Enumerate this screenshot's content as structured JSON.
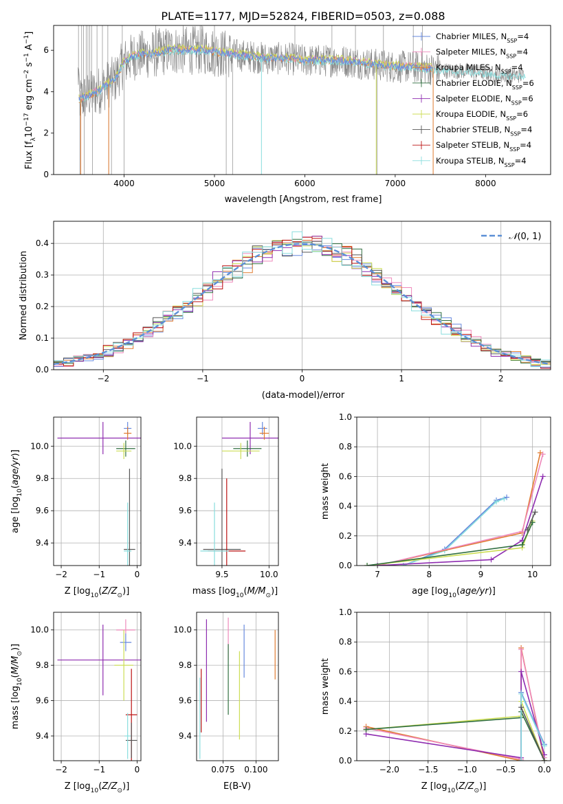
{
  "figure_title": "PLATE=1177, MJD=52824, FIBERID=0503, z=0.088",
  "colors": {
    "miles_chabrier": "#6688dd",
    "miles_salpeter": "#ee88bb",
    "miles_kroupa": "#e07a2e",
    "elodie_chabrier": "#2f6e3f",
    "elodie_salpeter": "#8e2cb0",
    "elodie_kroupa": "#ccdd55",
    "stelib_chabrier": "#555555",
    "stelib_salpeter": "#bb1111",
    "stelib_kroupa": "#88dddd",
    "spectrum": "#888888",
    "normal_curve": "#5b8fd6"
  },
  "chart_data": [
    {
      "type": "line",
      "xlabel": "wavelength [Angstrom, rest frame]",
      "ylabel": "Flux [f_λ10^-17 erg cm^-2 s^-1 A^-1]",
      "xlim": [
        3220,
        8720
      ],
      "ylim": [
        0,
        7.2
      ],
      "xticks": [
        4000,
        5000,
        6000,
        7000,
        8000
      ],
      "yticks": [
        0,
        2,
        4,
        6
      ],
      "grid": false,
      "legend_position": "top-right",
      "legend": [
        {
          "label": "Chabrier MILES, N_SSP=4",
          "color_key": "miles_chabrier"
        },
        {
          "label": "Salpeter MILES, N_SSP=4",
          "color_key": "miles_salpeter"
        },
        {
          "label": "Kroupa MILES, N_SSP=4",
          "color_key": "miles_kroupa"
        },
        {
          "label": "Chabrier ELODIE, N_SSP=6",
          "color_key": "elodie_chabrier"
        },
        {
          "label": "Salpeter ELODIE, N_SSP=6",
          "color_key": "elodie_salpeter"
        },
        {
          "label": "Kroupa ELODIE, N_SSP=6",
          "color_key": "elodie_kroupa"
        },
        {
          "label": "Chabrier STELIB, N_SSP=4",
          "color_key": "stelib_chabrier"
        },
        {
          "label": "Salpeter STELIB, N_SSP=4",
          "color_key": "stelib_salpeter"
        },
        {
          "label": "Kroupa STELIB, N_SSP=4",
          "color_key": "stelib_kroupa"
        }
      ],
      "continuum": [
        [
          3500,
          3.6
        ],
        [
          3600,
          3.8
        ],
        [
          3700,
          4.0
        ],
        [
          3800,
          4.3
        ],
        [
          3900,
          4.6
        ],
        [
          4000,
          5.4
        ],
        [
          4100,
          5.7
        ],
        [
          4200,
          5.8
        ],
        [
          4300,
          5.8
        ],
        [
          4400,
          5.9
        ],
        [
          4500,
          6.0
        ],
        [
          4600,
          6.0
        ],
        [
          4700,
          6.0
        ],
        [
          4800,
          6.0
        ],
        [
          4900,
          6.0
        ],
        [
          5000,
          5.9
        ],
        [
          5200,
          5.8
        ],
        [
          5400,
          5.7
        ],
        [
          5600,
          5.6
        ],
        [
          5800,
          5.6
        ],
        [
          6000,
          5.5
        ],
        [
          6200,
          5.5
        ],
        [
          6400,
          5.5
        ],
        [
          6600,
          5.4
        ],
        [
          6800,
          5.3
        ],
        [
          7000,
          5.2
        ],
        [
          7200,
          5.2
        ],
        [
          7400,
          5.1
        ],
        [
          7600,
          5.0
        ],
        [
          7800,
          5.0
        ],
        [
          8000,
          4.9
        ],
        [
          8200,
          4.8
        ],
        [
          8400,
          4.8
        ]
      ]
    },
    {
      "type": "line",
      "xlabel": "(data-model)/error",
      "ylabel": "Normed distribution",
      "xlim": [
        -2.5,
        2.5
      ],
      "ylim": [
        0,
        0.47
      ],
      "xticks": [
        -2,
        -1,
        0,
        1,
        2
      ],
      "yticks": [
        0.0,
        0.1,
        0.2,
        0.3,
        0.4
      ],
      "grid": true,
      "legend_position": "top-right",
      "legend": [
        {
          "label": "𝒩(0,1)",
          "color_key": "normal_curve"
        }
      ],
      "bin_width": 0.1
    },
    {
      "type": "scatter",
      "xlabel": "Z [log10(Z/Z⊙)]",
      "ylabel": "age [log10(age/yr)]",
      "xlim": [
        -2.2,
        0.1
      ],
      "ylim": [
        9.26,
        10.18
      ],
      "xticks": [
        -2,
        -1,
        0
      ],
      "yticks": [
        9.4,
        9.6,
        9.8,
        10.0
      ],
      "grid": true,
      "series": [
        {
          "color_key": "elodie_salpeter",
          "x": -0.9,
          "xerr": 1.2,
          "y": 10.05,
          "yerr": 0.1
        },
        {
          "color_key": "miles_chabrier",
          "x": -0.25,
          "xerr": 0.1,
          "y": 10.11,
          "yerr": 0.04
        },
        {
          "color_key": "miles_kroupa",
          "x": -0.25,
          "xerr": 0.1,
          "y": 10.08,
          "yerr": 0.04
        },
        {
          "color_key": "elodie_chabrier",
          "x": -0.3,
          "xerr": 0.25,
          "y": 9.985,
          "yerr": 0.05
        },
        {
          "color_key": "elodie_kroupa",
          "x": -0.35,
          "xerr": 0.2,
          "y": 9.97,
          "yerr": 0.05
        },
        {
          "color_key": "stelib_chabrier",
          "x": -0.2,
          "xerr": 0.15,
          "y": 9.36,
          "yerr": 0.5
        },
        {
          "color_key": "stelib_kroupa",
          "x": -0.25,
          "xerr": 0.1,
          "y": 9.35,
          "yerr": 0.3
        }
      ]
    },
    {
      "type": "scatter",
      "xlabel": "mass [log10(M/M⊙)]",
      "ylabel": "",
      "xlim": [
        9.23,
        10.1
      ],
      "ylim": [
        9.26,
        10.18
      ],
      "xticks": [
        9.5,
        10.0
      ],
      "yticks": [
        9.4,
        9.6,
        9.8,
        10.0
      ],
      "grid": true,
      "series": [
        {
          "color_key": "elodie_salpeter",
          "x": 9.8,
          "xerr": 0.3,
          "y": 10.05,
          "yerr": 0.1
        },
        {
          "color_key": "miles_chabrier",
          "x": 9.93,
          "xerr": 0.05,
          "y": 10.11,
          "yerr": 0.04
        },
        {
          "color_key": "miles_kroupa",
          "x": 9.95,
          "xerr": 0.05,
          "y": 10.08,
          "yerr": 0.04
        },
        {
          "color_key": "elodie_chabrier",
          "x": 9.77,
          "xerr": 0.15,
          "y": 9.985,
          "yerr": 0.05
        },
        {
          "color_key": "elodie_kroupa",
          "x": 9.7,
          "xerr": 0.2,
          "y": 9.97,
          "yerr": 0.05
        },
        {
          "color_key": "stelib_chabrier",
          "x": 9.5,
          "xerr": 0.2,
          "y": 9.36,
          "yerr": 0.5
        },
        {
          "color_key": "stelib_salpeter",
          "x": 9.55,
          "xerr": 0.2,
          "y": 9.35,
          "yerr": 0.45
        },
        {
          "color_key": "stelib_kroupa",
          "x": 9.42,
          "xerr": 0.15,
          "y": 9.35,
          "yerr": 0.3
        }
      ]
    },
    {
      "type": "line",
      "xlabel": "age [log10(age/yr)]",
      "ylabel": "mass weight",
      "xlim": [
        6.6,
        10.35
      ],
      "ylim": [
        0,
        1.0
      ],
      "xticks": [
        7,
        8,
        9,
        10
      ],
      "yticks": [
        0.0,
        0.2,
        0.4,
        0.6,
        0.8,
        1.0
      ],
      "grid": true,
      "series": [
        {
          "color_key": "miles_chabrier",
          "x": [
            7.5,
            8.3,
            9.3,
            9.5
          ],
          "y": [
            0.0,
            0.11,
            0.44,
            0.46
          ]
        },
        {
          "color_key": "stelib_kroupa",
          "x": [
            7.5,
            8.3,
            9.3,
            9.45
          ],
          "y": [
            0.0,
            0.1,
            0.43,
            0.45
          ]
        },
        {
          "color_key": "miles_kroupa",
          "x": [
            7.0,
            9.8,
            10.15
          ],
          "y": [
            0.0,
            0.22,
            0.76
          ]
        },
        {
          "color_key": "miles_salpeter",
          "x": [
            7.0,
            9.8,
            10.2
          ],
          "y": [
            0.0,
            0.23,
            0.75
          ]
        },
        {
          "color_key": "elodie_salpeter",
          "x": [
            7.0,
            9.2,
            9.8,
            10.2
          ],
          "y": [
            0.0,
            0.04,
            0.17,
            0.6
          ]
        },
        {
          "color_key": "elodie_kroupa",
          "x": [
            6.8,
            9.8,
            10.0
          ],
          "y": [
            0.0,
            0.12,
            0.3
          ]
        },
        {
          "color_key": "elodie_chabrier",
          "x": [
            6.8,
            9.8,
            10.0
          ],
          "y": [
            0.0,
            0.14,
            0.29
          ]
        },
        {
          "color_key": "stelib_chabrier",
          "x": [
            9.9,
            10.05
          ],
          "y": [
            0.24,
            0.36
          ]
        }
      ]
    },
    {
      "type": "scatter",
      "xlabel": "Z [log10(Z/Z⊙)]",
      "ylabel": "mass [log10(M/M⊙)]",
      "xlim": [
        -2.2,
        0.1
      ],
      "ylim": [
        9.26,
        10.1
      ],
      "xticks": [
        -2,
        -1,
        0
      ],
      "yticks": [
        9.4,
        9.6,
        9.8,
        10.0
      ],
      "grid": true,
      "series": [
        {
          "color_key": "elodie_salpeter",
          "x": -0.9,
          "xerr": 1.2,
          "y": 9.83,
          "yerr": 0.2
        },
        {
          "color_key": "miles_salpeter",
          "x": -0.3,
          "xerr": 0.25,
          "y": 10.0,
          "yerr": 0.06
        },
        {
          "color_key": "miles_chabrier",
          "x": -0.3,
          "xerr": 0.15,
          "y": 9.93,
          "yerr": 0.05
        },
        {
          "color_key": "elodie_kroupa",
          "x": -0.35,
          "xerr": 0.25,
          "y": 9.8,
          "yerr": 0.2
        },
        {
          "color_key": "stelib_salpeter",
          "x": -0.15,
          "xerr": 0.15,
          "y": 9.52,
          "yerr": 0.26
        },
        {
          "color_key": "stelib_chabrier",
          "x": -0.15,
          "xerr": 0.15,
          "y": 9.375,
          "yerr": 0.1
        },
        {
          "color_key": "stelib_kroupa",
          "x": -0.25,
          "xerr": 0.08,
          "y": 9.4,
          "yerr": 0.13
        }
      ]
    },
    {
      "type": "scatter",
      "xlabel": "E(B-V)",
      "ylabel": "",
      "xlim": [
        0.055,
        0.117
      ],
      "ylim": [
        9.26,
        10.1
      ],
      "xticks": [
        0.075,
        0.1
      ],
      "xtick_labels": [
        "0.075",
        "0.100"
      ],
      "yticks": [
        9.4,
        9.6,
        9.8,
        10.0
      ],
      "grid": true,
      "series": [
        {
          "color_key": "stelib_kroupa",
          "x": 0.0575,
          "y": 9.5,
          "yerr": 0.23
        },
        {
          "color_key": "stelib_salpeter",
          "x": 0.0585,
          "y": 9.6,
          "yerr": 0.18
        },
        {
          "color_key": "elodie_salpeter",
          "x": 0.0625,
          "y": 9.77,
          "yerr": 0.29
        },
        {
          "color_key": "miles_salpeter",
          "x": 0.079,
          "y": 9.95,
          "yerr": 0.12
        },
        {
          "color_key": "elodie_chabrier",
          "x": 0.079,
          "y": 9.72,
          "yerr": 0.2
        },
        {
          "color_key": "elodie_kroupa",
          "x": 0.0875,
          "y": 9.63,
          "yerr": 0.25
        },
        {
          "color_key": "miles_chabrier",
          "x": 0.091,
          "y": 9.88,
          "yerr": 0.15
        },
        {
          "color_key": "miles_kroupa",
          "x": 0.1145,
          "y": 9.86,
          "yerr": 0.14
        }
      ]
    },
    {
      "type": "line",
      "xlabel": "Z [log10(Z/Z⊙)]",
      "ylabel": "mass weight",
      "xlim": [
        -2.42,
        0.08
      ],
      "ylim": [
        0,
        1.0
      ],
      "xticks": [
        -2.0,
        -1.5,
        -1.0,
        -0.5,
        0.0
      ],
      "xtick_labels": [
        "−2.0",
        "−1.5",
        "−1.0",
        "−0.5",
        "0.0"
      ],
      "yticks": [
        0.0,
        0.2,
        0.4,
        0.6,
        0.8,
        1.0
      ],
      "grid": true,
      "series": [
        {
          "color_key": "miles_kroupa",
          "x": [
            -2.3,
            -0.3,
            -0.3,
            0.0
          ],
          "y": [
            0.23,
            0.0,
            0.76,
            0.0
          ]
        },
        {
          "color_key": "miles_salpeter",
          "x": [
            -2.3,
            -0.3,
            -0.3,
            0.0
          ],
          "y": [
            0.22,
            0.01,
            0.75,
            0.02
          ]
        },
        {
          "color_key": "elodie_salpeter",
          "x": [
            -2.3,
            -0.3,
            -0.3,
            0.0
          ],
          "y": [
            0.18,
            0.02,
            0.6,
            0.04
          ]
        },
        {
          "color_key": "elodie_kroupa",
          "x": [
            -2.3,
            -0.3,
            -0.3,
            0.0
          ],
          "y": [
            0.21,
            0.3,
            0.4,
            0.0
          ]
        },
        {
          "color_key": "elodie_chabrier",
          "x": [
            -2.3,
            -0.3,
            -0.3,
            0.0
          ],
          "y": [
            0.21,
            0.29,
            0.33,
            0.0
          ]
        },
        {
          "color_key": "miles_chabrier",
          "x": [
            -0.3,
            -0.3,
            0.0
          ],
          "y": [
            0.0,
            0.46,
            0.11
          ]
        },
        {
          "color_key": "stelib_kroupa",
          "x": [
            -0.3,
            -0.3,
            0.0
          ],
          "y": [
            0.0,
            0.45,
            0.1
          ]
        },
        {
          "color_key": "stelib_chabrier",
          "x": [
            -0.3,
            0.0
          ],
          "y": [
            0.36,
            0.0
          ]
        }
      ]
    }
  ]
}
